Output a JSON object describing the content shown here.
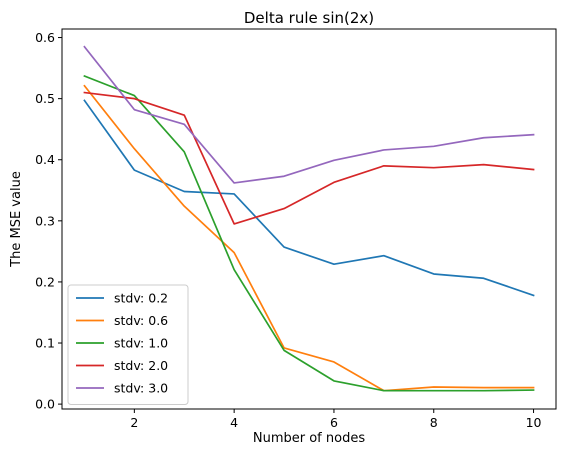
{
  "chart_data": {
    "type": "line",
    "title": "Delta rule sin(2x)",
    "xlabel": "Number of nodes",
    "ylabel": "The MSE value",
    "xlim": [
      0.55,
      10.45
    ],
    "ylim": [
      -0.008,
      0.614
    ],
    "xticks": [
      2,
      4,
      6,
      8,
      10
    ],
    "yticks": [
      0.0,
      0.1,
      0.2,
      0.3,
      0.4,
      0.5,
      0.6
    ],
    "ytick_labels": [
      "0.0",
      "0.1",
      "0.2",
      "0.3",
      "0.4",
      "0.5",
      "0.6"
    ],
    "grid": false,
    "legend": "lower-left",
    "x": [
      1,
      2,
      3,
      4,
      5,
      6,
      7,
      8,
      9,
      10
    ],
    "series": [
      {
        "name": "stdv: 0.2",
        "color": "#1f77b4",
        "values": [
          0.497,
          0.383,
          0.348,
          0.344,
          0.257,
          0.229,
          0.243,
          0.213,
          0.206,
          0.178
        ]
      },
      {
        "name": "stdv: 0.6",
        "color": "#ff7f0e",
        "values": [
          0.521,
          0.418,
          0.324,
          0.248,
          0.092,
          0.069,
          0.022,
          0.028,
          0.027,
          0.027
        ]
      },
      {
        "name": "stdv: 1.0",
        "color": "#2ca02c",
        "values": [
          0.537,
          0.505,
          0.413,
          0.22,
          0.088,
          0.038,
          0.022,
          0.022,
          0.022,
          0.023
        ]
      },
      {
        "name": "stdv: 2.0",
        "color": "#d62728",
        "values": [
          0.51,
          0.5,
          0.473,
          0.295,
          0.32,
          0.363,
          0.39,
          0.387,
          0.392,
          0.384
        ]
      },
      {
        "name": "stdv: 3.0",
        "color": "#9467bd",
        "values": [
          0.585,
          0.482,
          0.458,
          0.362,
          0.373,
          0.399,
          0.416,
          0.422,
          0.436,
          0.441
        ]
      }
    ]
  }
}
